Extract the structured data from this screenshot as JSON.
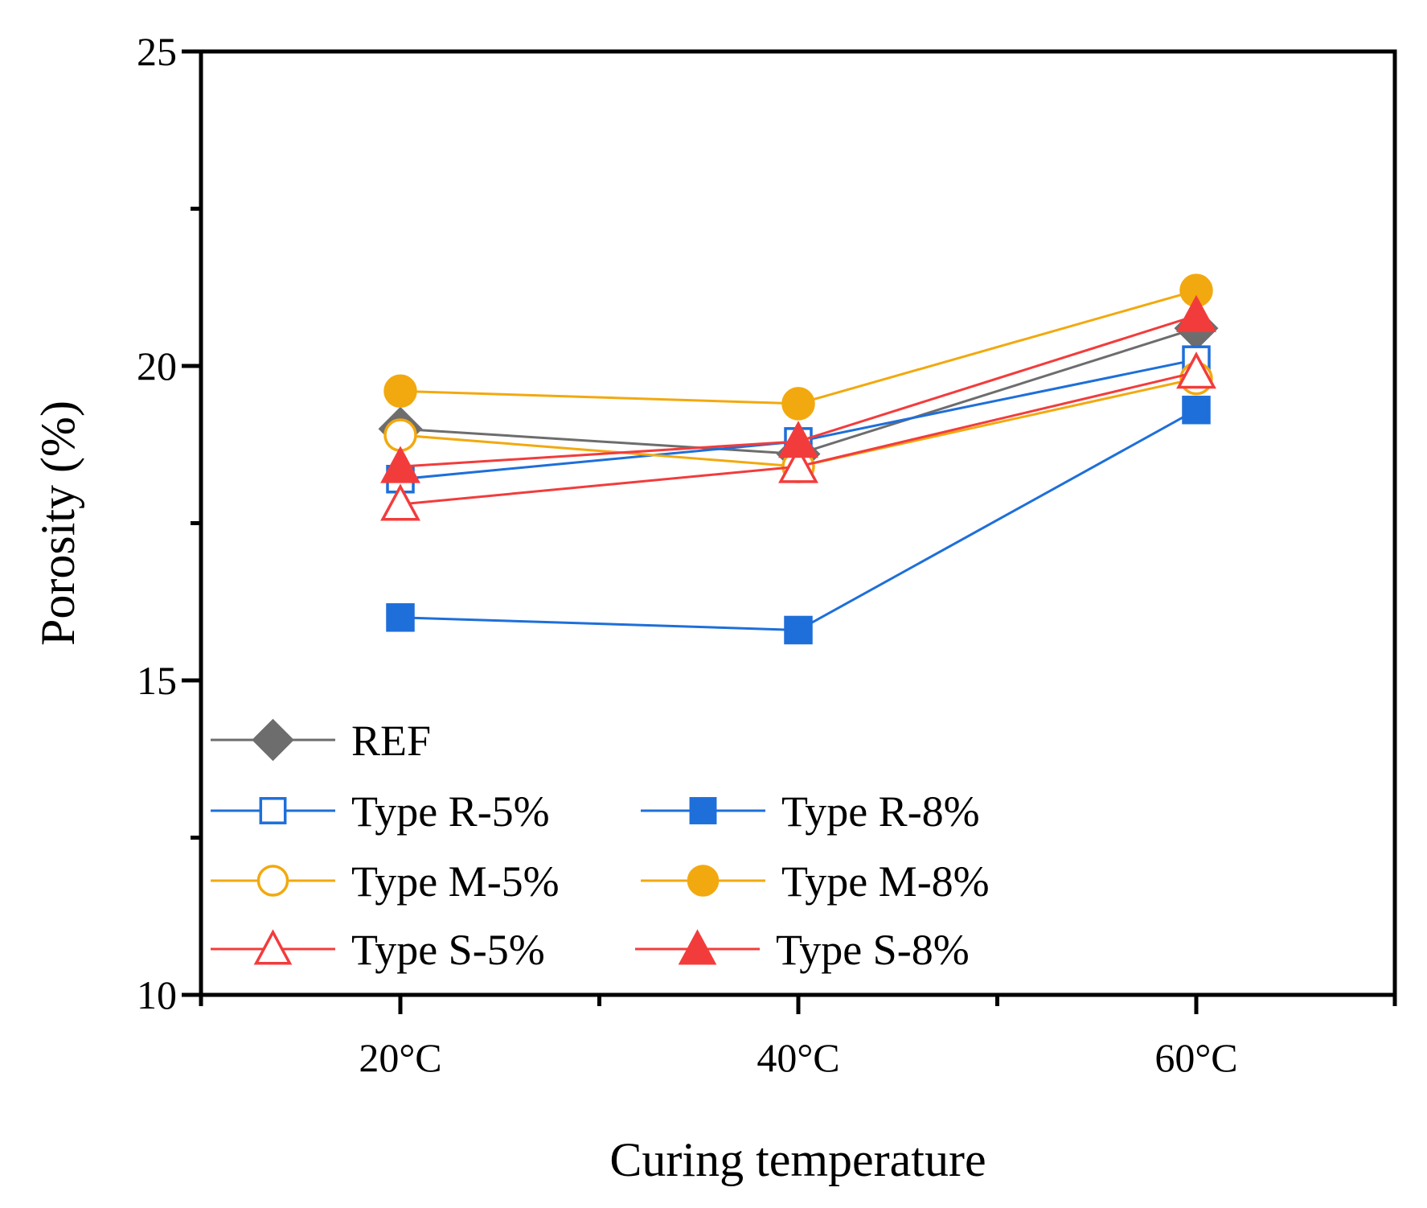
{
  "chart_data": {
    "type": "line",
    "title": "",
    "xlabel": "Curing temperature",
    "ylabel": "Porosity (%)",
    "categories": [
      "20°C",
      "40°C",
      "60°C"
    ],
    "ylim": [
      10,
      25
    ],
    "yticks": [
      "10",
      "15",
      "20",
      "25"
    ],
    "legend_position": "bottom-left",
    "series": [
      {
        "name": "REF",
        "color": "#6d6d6d",
        "marker": "diamond",
        "filled": true,
        "values": [
          19.0,
          18.6,
          20.6
        ]
      },
      {
        "name": "Type R-5%",
        "color": "#1e6fd9",
        "marker": "square",
        "filled": false,
        "values": [
          18.2,
          18.8,
          20.1
        ]
      },
      {
        "name": "Type R-8%",
        "color": "#1e6fd9",
        "marker": "square",
        "filled": true,
        "values": [
          16.0,
          15.8,
          19.3
        ]
      },
      {
        "name": "Type M-5%",
        "color": "#f2a90f",
        "marker": "circle",
        "filled": false,
        "values": [
          18.9,
          18.4,
          19.8
        ]
      },
      {
        "name": "Type M-8%",
        "color": "#f2a90f",
        "marker": "circle",
        "filled": true,
        "values": [
          19.6,
          19.4,
          21.2
        ]
      },
      {
        "name": "Type S-5%",
        "color": "#f23c3c",
        "marker": "triangle",
        "filled": false,
        "values": [
          17.8,
          18.4,
          19.9
        ]
      },
      {
        "name": "Type S-8%",
        "color": "#f23c3c",
        "marker": "triangle",
        "filled": true,
        "values": [
          18.4,
          18.8,
          20.8
        ]
      }
    ]
  }
}
